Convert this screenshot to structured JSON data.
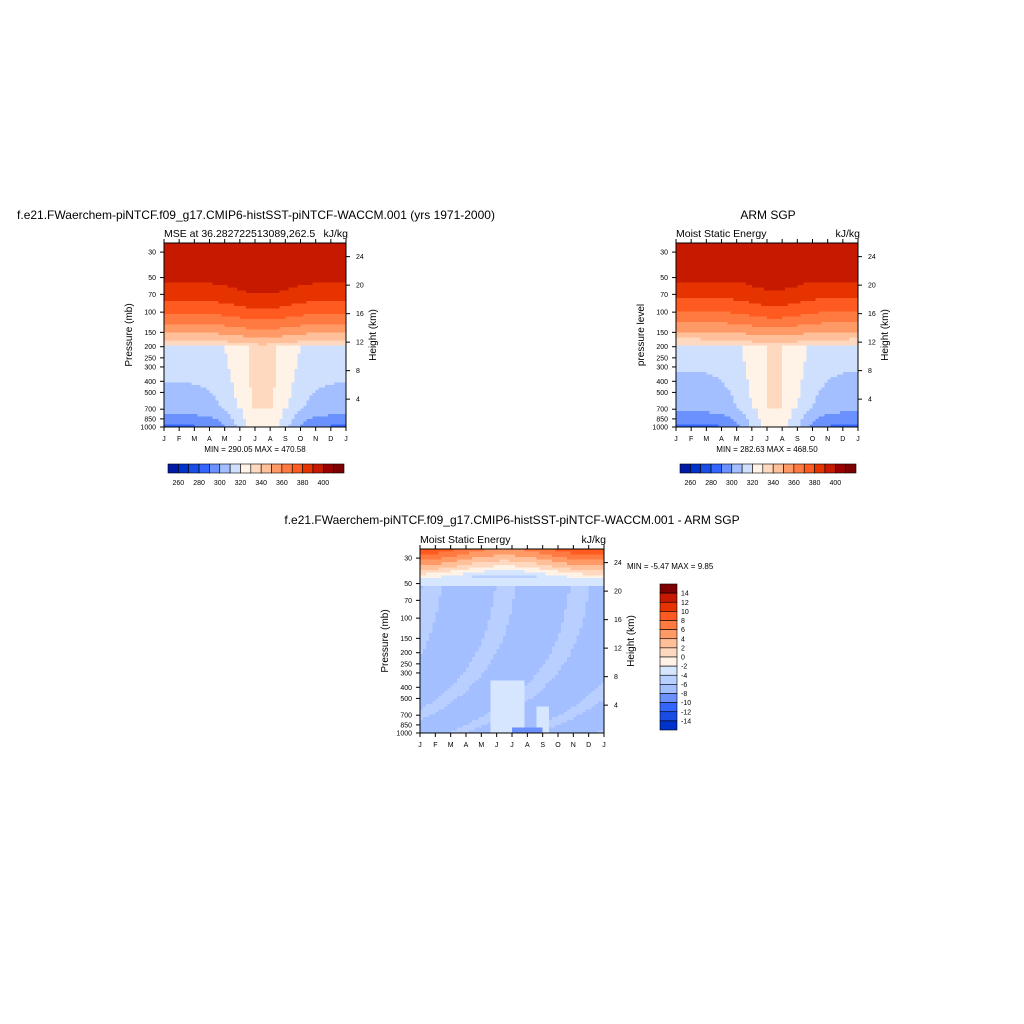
{
  "colors": {
    "abs_levels": [
      "#00007f",
      "#0019a6",
      "#0033cc",
      "#1a4de6",
      "#3366ff",
      "#6b91ff",
      "#a3bfff",
      "#cfe0ff",
      "#fff2e6",
      "#ffd9bf",
      "#ffbf99",
      "#ff9966",
      "#ff7a40",
      "#ff5a1f",
      "#e63300",
      "#c61900",
      "#990000",
      "#7f0000"
    ],
    "diff_levels": [
      "#00007f",
      "#0019a6",
      "#0033cc",
      "#1a4de6",
      "#3366ff",
      "#6b91ff",
      "#a3bfff",
      "#b8cfff",
      "#d6e6ff",
      "#fff2e6",
      "#ffd9bf",
      "#ffbf99",
      "#ff9966",
      "#ff7a40",
      "#ff5a1f",
      "#e63300",
      "#c61900",
      "#7f0000"
    ]
  },
  "panels": [
    {
      "id": "model",
      "title": "f.e21.FWaerchem-piNTCF.f09_g17.CMIP6-histSST-piNTCF-WACCM.001 (yrs 1971-2000)",
      "left_label": "MSE at 36.282722513089,262.5",
      "right_label": "kJ/kg",
      "ylabel_left": "Pressure (mb)",
      "ylabel_right": "Height (km)",
      "minmax": "MIN = 290.05 MAX = 470.58"
    },
    {
      "id": "obs",
      "title": "ARM SGP",
      "left_label": "Moist Static Energy",
      "right_label": "kJ/kg",
      "ylabel_left": "pressure level",
      "ylabel_right": "Height (km)",
      "minmax": "MIN = 282.63 MAX = 468.50"
    },
    {
      "id": "diff",
      "title": "f.e21.FWaerchem-piNTCF.f09_g17.CMIP6-histSST-piNTCF-WACCM.001 - ARM SGP",
      "left_label": "Moist Static Energy",
      "right_label": "kJ/kg",
      "ylabel_left": "Pressure (mb)",
      "ylabel_right": "Height (km)",
      "minmax": "MIN =  -5.47 MAX =   9.85"
    }
  ],
  "chart_data": [
    {
      "type": "heatmap",
      "name": "model",
      "x": [
        "J",
        "F",
        "M",
        "A",
        "M",
        "J",
        "J",
        "A",
        "S",
        "O",
        "N",
        "D",
        "J"
      ],
      "y_pressure_ticks": [
        30,
        50,
        70,
        100,
        150,
        200,
        250,
        300,
        400,
        500,
        700,
        850,
        1000
      ],
      "y_height_ticks": [
        4,
        8,
        12,
        16,
        20,
        24
      ],
      "zlevels": [
        260,
        270,
        280,
        290,
        300,
        310,
        320,
        330,
        340,
        350,
        360,
        370,
        380,
        390,
        400
      ],
      "colorbar_labels": [
        "260",
        "280",
        "300",
        "320",
        "340",
        "360",
        "380",
        "400"
      ],
      "min": 290.05,
      "max": 470.58
    },
    {
      "type": "heatmap",
      "name": "obs",
      "x": [
        "J",
        "F",
        "M",
        "A",
        "M",
        "J",
        "J",
        "A",
        "S",
        "O",
        "N",
        "D",
        "J"
      ],
      "y_pressure_ticks": [
        30,
        50,
        70,
        100,
        150,
        200,
        250,
        300,
        400,
        500,
        700,
        850,
        1000
      ],
      "y_height_ticks": [
        4,
        8,
        12,
        16,
        20,
        24
      ],
      "zlevels": [
        260,
        270,
        280,
        290,
        300,
        310,
        320,
        330,
        340,
        350,
        360,
        370,
        380,
        390,
        400
      ],
      "colorbar_labels": [
        "260",
        "280",
        "300",
        "320",
        "340",
        "360",
        "380",
        "400"
      ],
      "min": 282.63,
      "max": 468.5
    },
    {
      "type": "heatmap",
      "name": "difference",
      "x": [
        "J",
        "F",
        "M",
        "A",
        "M",
        "J",
        "J",
        "A",
        "S",
        "O",
        "N",
        "D",
        "J"
      ],
      "y_pressure_ticks": [
        30,
        50,
        70,
        100,
        150,
        200,
        250,
        300,
        400,
        500,
        700,
        850,
        1000
      ],
      "y_height_ticks": [
        4,
        8,
        12,
        16,
        20,
        24
      ],
      "zlevels": [
        -14,
        -12,
        -10,
        -8,
        -6,
        -4,
        -2,
        0,
        2,
        4,
        6,
        8,
        10,
        12,
        14
      ],
      "colorbar_labels": [
        "14",
        "12",
        "10",
        "8",
        "6",
        "4",
        "2",
        "0",
        "-2",
        "-4",
        "-6",
        "-8",
        "-10",
        "-12",
        "-14"
      ],
      "min": -5.47,
      "max": 9.85
    }
  ]
}
